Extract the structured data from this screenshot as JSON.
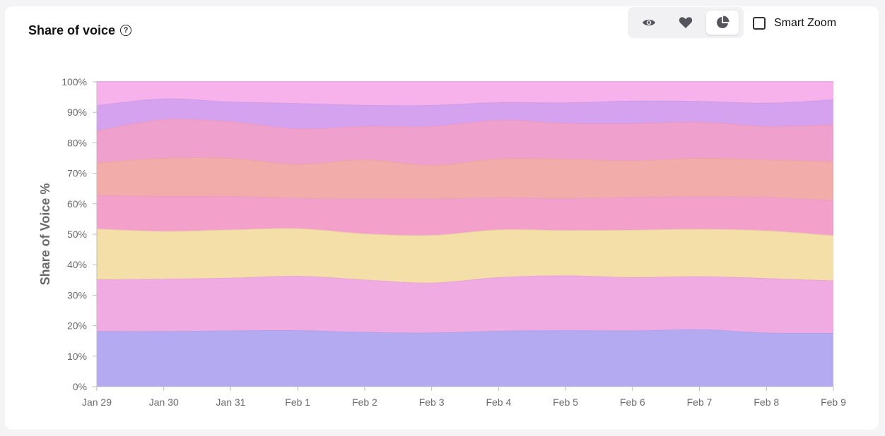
{
  "header": {
    "title": "Share of voice",
    "help_glyph": "?"
  },
  "toolbar": {
    "buttons": [
      {
        "icon": "eye-icon",
        "active": false
      },
      {
        "icon": "heart-icon",
        "active": false
      },
      {
        "icon": "pie-chart-icon",
        "active": true
      }
    ],
    "smart_zoom_label": "Smart Zoom",
    "smart_zoom_checked": false
  },
  "chart_data": {
    "type": "area",
    "stacked": true,
    "normalized": true,
    "title": "",
    "xlabel": "",
    "ylabel": "Share of Voice %",
    "ylim": [
      0,
      100
    ],
    "y_ticks": [
      "0%",
      "10%",
      "20%",
      "30%",
      "40%",
      "50%",
      "60%",
      "70%",
      "80%",
      "90%",
      "100%"
    ],
    "grid": false,
    "legend": "none",
    "categories": [
      "Jan 29",
      "Jan 30",
      "Jan 31",
      "Feb 1",
      "Feb 2",
      "Feb 3",
      "Feb 4",
      "Feb 5",
      "Feb 6",
      "Feb 7",
      "Feb 8",
      "Feb 9"
    ],
    "series": [
      {
        "color": "#b3aaf2",
        "values": [
          18.2,
          18.2,
          18.4,
          18.5,
          17.9,
          17.7,
          18.3,
          18.5,
          18.4,
          18.8,
          17.7,
          17.6
        ]
      },
      {
        "color": "#f0abe3",
        "values": [
          17.0,
          17.2,
          17.3,
          17.8,
          17.2,
          16.4,
          17.6,
          18.0,
          17.5,
          17.4,
          17.9,
          17.2
        ]
      },
      {
        "color": "#f5dfa8",
        "values": [
          16.6,
          15.6,
          15.8,
          15.6,
          15.1,
          15.6,
          15.6,
          14.8,
          15.5,
          15.5,
          15.6,
          14.8
        ]
      },
      {
        "color": "#f3a1cb",
        "values": [
          11.0,
          11.5,
          11.0,
          10.0,
          11.5,
          12.0,
          10.5,
          10.5,
          10.8,
          10.7,
          11.0,
          11.5
        ]
      },
      {
        "color": "#f2adaa",
        "values": [
          10.7,
          12.5,
          12.5,
          11.1,
          12.8,
          11.0,
          12.8,
          12.9,
          12.0,
          12.6,
          12.3,
          12.7
        ]
      },
      {
        "color": "#f0a0cc",
        "values": [
          10.5,
          12.7,
          12.0,
          11.7,
          11.0,
          12.8,
          12.7,
          11.8,
          12.2,
          11.9,
          11.0,
          12.2
        ]
      },
      {
        "color": "#d5a2f0",
        "values": [
          8.3,
          6.8,
          6.5,
          8.3,
          6.9,
          6.9,
          5.8,
          6.7,
          7.4,
          6.8,
          7.6,
          8.2
        ]
      },
      {
        "color": "#f7b2ec",
        "values": [
          7.7,
          5.5,
          6.5,
          7.0,
          7.6,
          7.6,
          6.7,
          6.8,
          6.2,
          6.3,
          6.9,
          5.8
        ]
      }
    ]
  }
}
